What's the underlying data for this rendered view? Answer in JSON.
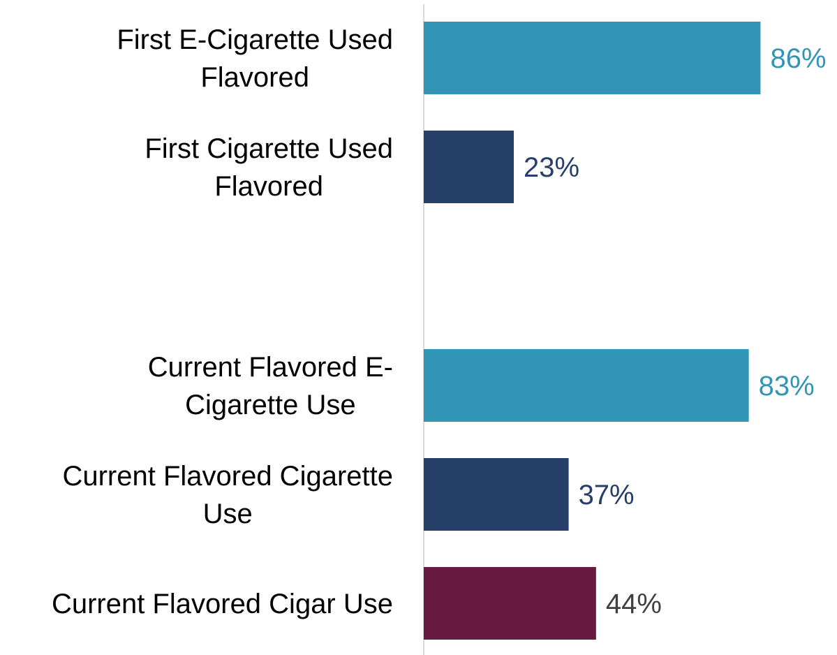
{
  "chart_data": {
    "type": "bar",
    "orientation": "horizontal",
    "title": "",
    "xlabel": "",
    "ylabel": "",
    "xlim": [
      0,
      100
    ],
    "grid": false,
    "legend": "none",
    "groups": [
      {
        "bars": [
          {
            "label_lines": [
              "First E-Cigarette Used",
              "Flavored"
            ],
            "value": 86,
            "value_label": "86%",
            "color": "#3196B5",
            "label_color": "#3196B5"
          },
          {
            "label_lines": [
              "First Cigarette Used",
              "Flavored"
            ],
            "value": 23,
            "value_label": "23%",
            "color": "#263F69",
            "label_color": "#263F69"
          }
        ]
      },
      {
        "bars": [
          {
            "label_lines": [
              "Current Flavored E-",
              "Cigarette Use"
            ],
            "value": 83,
            "value_label": "83%",
            "color": "#3196B5",
            "label_color": "#3196B5"
          },
          {
            "label_lines": [
              "Current Flavored Cigarette",
              "Use"
            ],
            "value": 37,
            "value_label": "37%",
            "color": "#263F69",
            "label_color": "#263F69"
          },
          {
            "label_lines": [
              "Current Flavored Cigar Use"
            ],
            "value": 44,
            "value_label": "44%",
            "color": "#661A3F",
            "label_color": "#404040"
          }
        ]
      }
    ],
    "axis_color": "#D9D9D9"
  }
}
